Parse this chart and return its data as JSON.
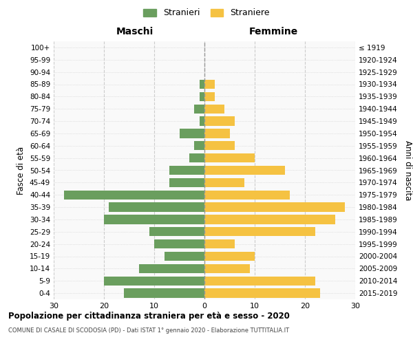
{
  "age_groups": [
    "0-4",
    "5-9",
    "10-14",
    "15-19",
    "20-24",
    "25-29",
    "30-34",
    "35-39",
    "40-44",
    "45-49",
    "50-54",
    "55-59",
    "60-64",
    "65-69",
    "70-74",
    "75-79",
    "80-84",
    "85-89",
    "90-94",
    "95-99",
    "100+"
  ],
  "birth_years": [
    "2015-2019",
    "2010-2014",
    "2005-2009",
    "2000-2004",
    "1995-1999",
    "1990-1994",
    "1985-1989",
    "1980-1984",
    "1975-1979",
    "1970-1974",
    "1965-1969",
    "1960-1964",
    "1955-1959",
    "1950-1954",
    "1945-1949",
    "1940-1944",
    "1935-1939",
    "1930-1934",
    "1925-1929",
    "1920-1924",
    "≤ 1919"
  ],
  "maschi": [
    16,
    20,
    13,
    8,
    10,
    11,
    20,
    19,
    28,
    7,
    7,
    3,
    2,
    5,
    1,
    2,
    1,
    1,
    0,
    0,
    0
  ],
  "femmine": [
    23,
    22,
    9,
    10,
    6,
    22,
    26,
    28,
    17,
    8,
    16,
    10,
    6,
    5,
    6,
    4,
    2,
    2,
    0,
    0,
    0
  ],
  "male_color": "#6a9e5e",
  "female_color": "#f5c242",
  "grid_color": "#cccccc",
  "center_line_color": "#999999",
  "xlim": 30,
  "title": "Popolazione per cittadinanza straniera per età e sesso - 2020",
  "subtitle": "COMUNE DI CASALE DI SCODOSIA (PD) - Dati ISTAT 1° gennaio 2020 - Elaborazione TUTTITALIA.IT",
  "legend_maschi": "Stranieri",
  "legend_femmine": "Straniere",
  "xlabel_left": "Maschi",
  "xlabel_right": "Femmine",
  "ylabel_left": "Fasce di età",
  "ylabel_right": "Anni di nascita",
  "bg_color": "#ffffff",
  "plot_bg_color": "#f9f9f9"
}
